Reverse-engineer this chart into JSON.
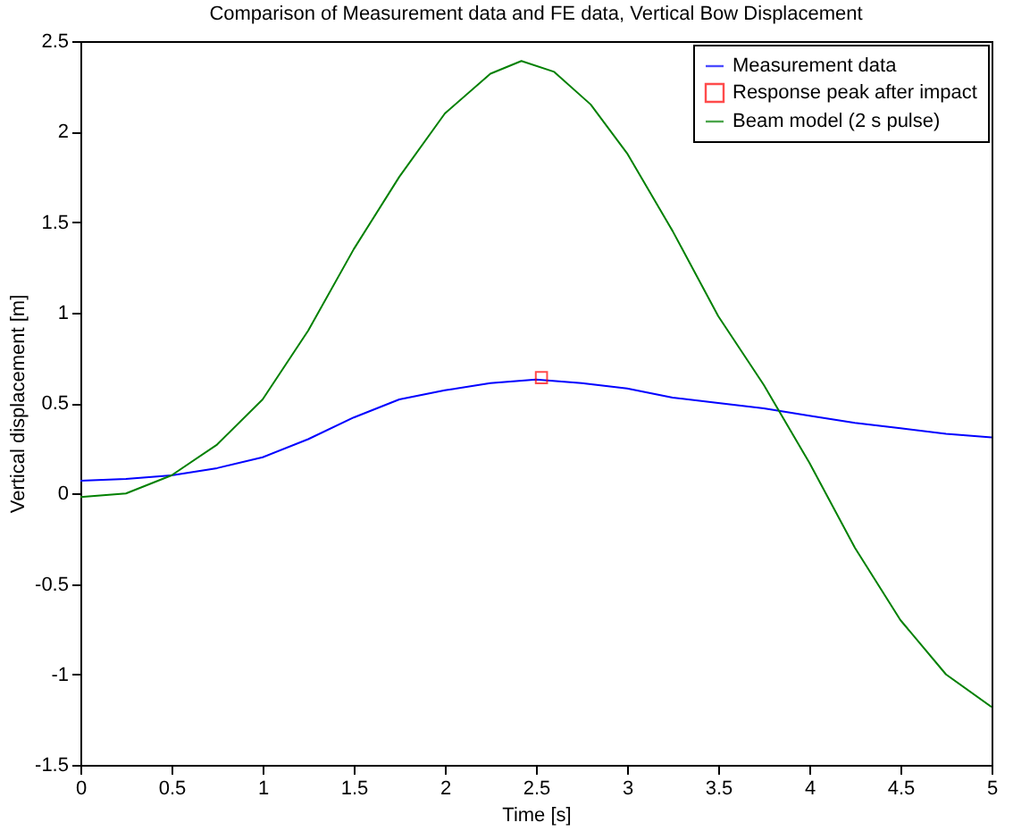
{
  "chart_data": {
    "type": "line",
    "title": "Comparison of Measurement data and FE data, Vertical Bow Displacement",
    "xlabel": "Time [s]",
    "ylabel": "Vertical displacement [m]",
    "xlim": [
      0,
      5
    ],
    "ylim": [
      -1.5,
      2.5
    ],
    "xticks": [
      0,
      0.5,
      1,
      1.5,
      2,
      2.5,
      3,
      3.5,
      4,
      4.5,
      5
    ],
    "yticks": [
      -1.5,
      -1,
      -0.5,
      0,
      0.5,
      1,
      1.5,
      2,
      2.5
    ],
    "grid": false,
    "legend": "top right",
    "series": [
      {
        "name": "Measurement data",
        "color": "#0000ff",
        "type": "line",
        "marker": "none",
        "x": [
          0,
          0.25,
          0.5,
          0.75,
          1,
          1.25,
          1.5,
          1.75,
          2,
          2.25,
          2.5,
          2.75,
          3,
          3.25,
          3.5,
          3.75,
          4,
          4.25,
          4.5,
          4.75,
          5
        ],
        "values": [
          0.07,
          0.08,
          0.1,
          0.14,
          0.2,
          0.3,
          0.42,
          0.52,
          0.57,
          0.61,
          0.63,
          0.61,
          0.58,
          0.53,
          0.5,
          0.47,
          0.43,
          0.39,
          0.36,
          0.33,
          0.31
        ]
      },
      {
        "name": "Response peak after impact",
        "color": "#ff0000",
        "type": "scatter",
        "marker": "square",
        "x": [
          2.53
        ],
        "values": [
          0.64
        ]
      },
      {
        "name": "Beam model (2 s pulse)",
        "color": "#008000",
        "type": "line",
        "marker": "none",
        "x": [
          0,
          0.25,
          0.5,
          0.75,
          1,
          1.25,
          1.5,
          1.75,
          2,
          2.25,
          2.42,
          2.6,
          2.8,
          3,
          3.25,
          3.5,
          3.75,
          4,
          4.25,
          4.5,
          4.75,
          5
        ],
        "values": [
          -0.02,
          0,
          0.1,
          0.27,
          0.52,
          0.9,
          1.35,
          1.75,
          2.1,
          2.32,
          2.39,
          2.33,
          2.15,
          1.88,
          1.45,
          0.98,
          0.6,
          0.17,
          -0.3,
          -0.7,
          -1,
          -1.18
        ]
      }
    ]
  }
}
